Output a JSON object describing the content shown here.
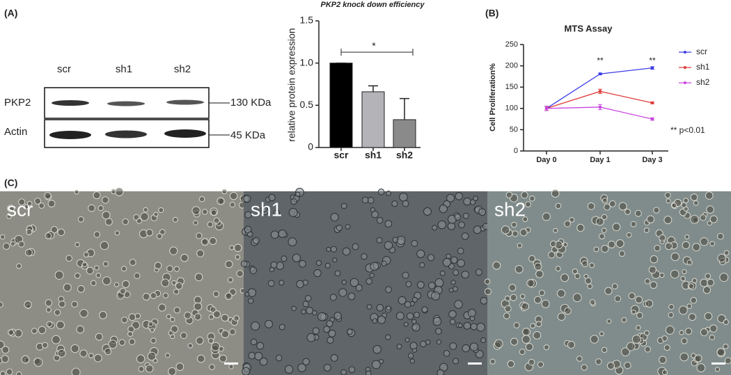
{
  "panel_labels": [
    "(A)",
    "(B)",
    "(C)"
  ],
  "western_blot": {
    "lanes": [
      "scr",
      "sh1",
      "sh2"
    ],
    "rows": [
      {
        "name": "PKP2",
        "size": "130 KDa"
      },
      {
        "name": "Actin",
        "size": "45 KDa"
      }
    ]
  },
  "chart_data": [
    {
      "type": "bar",
      "title": "PKP2 knock down efficiency",
      "y_label": "relative protein expression",
      "categories": [
        "scr",
        "sh1",
        "sh2"
      ],
      "values": [
        1,
        0.66,
        0.33
      ],
      "errors": [
        0,
        0.07,
        0.25
      ],
      "colors": [
        "#000000",
        "#b3b3b8",
        "#8a8a8a"
      ],
      "ylim": [
        0,
        1.5
      ],
      "yticks": [
        0,
        0.5,
        {
          "value": 1,
          "label": "1.0"
        },
        1.5
      ],
      "significance": "*"
    },
    {
      "type": "line",
      "title": "MTS Assay",
      "y_label": "Cell Proliferation%",
      "categories": [
        "Day 0",
        "Day 1",
        "Day 3"
      ],
      "series": [
        {
          "name": "scr",
          "color": "#3b3be6",
          "values": [
            100,
            181,
            195
          ],
          "errors": [
            5,
            2,
            3
          ]
        },
        {
          "name": "sh1",
          "color": "#e03a3a",
          "values": [
            100,
            140,
            113
          ],
          "errors": [
            5,
            5,
            2
          ]
        },
        {
          "name": "sh2",
          "color": "#c845e0",
          "values": [
            100,
            103,
            75
          ],
          "errors": [
            5,
            6,
            3
          ]
        }
      ],
      "ylim": [
        0,
        250
      ],
      "yticks": [
        0,
        50,
        100,
        150,
        200,
        250
      ],
      "annotations": [
        "**",
        "**"
      ],
      "note": "** p<0.01",
      "legend": "right"
    }
  ],
  "micrographs": {
    "labels": [
      "scr",
      "sh1",
      "sh2"
    ]
  }
}
